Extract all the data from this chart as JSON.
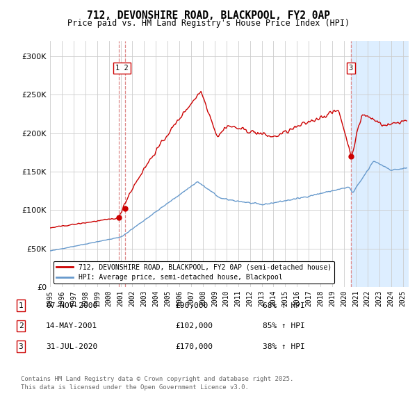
{
  "title": "712, DEVONSHIRE ROAD, BLACKPOOL, FY2 0AP",
  "subtitle": "Price paid vs. HM Land Registry's House Price Index (HPI)",
  "ylim": [
    0,
    320000
  ],
  "xlim_start": 1995.0,
  "xlim_end": 2025.5,
  "legend_line1": "712, DEVONSHIRE ROAD, BLACKPOOL, FY2 0AP (semi-detached house)",
  "legend_line2": "HPI: Average price, semi-detached house, Blackpool",
  "transactions": [
    {
      "num": 1,
      "date": "07-NOV-2000",
      "price": 90000,
      "pct": "68%",
      "x_year": 2000.85
    },
    {
      "num": 2,
      "date": "14-MAY-2001",
      "price": 102000,
      "pct": "85%",
      "x_year": 2001.37
    },
    {
      "num": 3,
      "date": "31-JUL-2020",
      "price": 170000,
      "pct": "38%",
      "x_year": 2020.58
    }
  ],
  "footer_line1": "Contains HM Land Registry data © Crown copyright and database right 2025.",
  "footer_line2": "This data is licensed under the Open Government Licence v3.0.",
  "red_color": "#cc0000",
  "blue_color": "#6699cc",
  "marker_box_color": "#cc0000",
  "vline_color": "#dd8888",
  "background_color": "#ffffff",
  "grid_color": "#cccccc",
  "shade_color": "#ddeeff"
}
